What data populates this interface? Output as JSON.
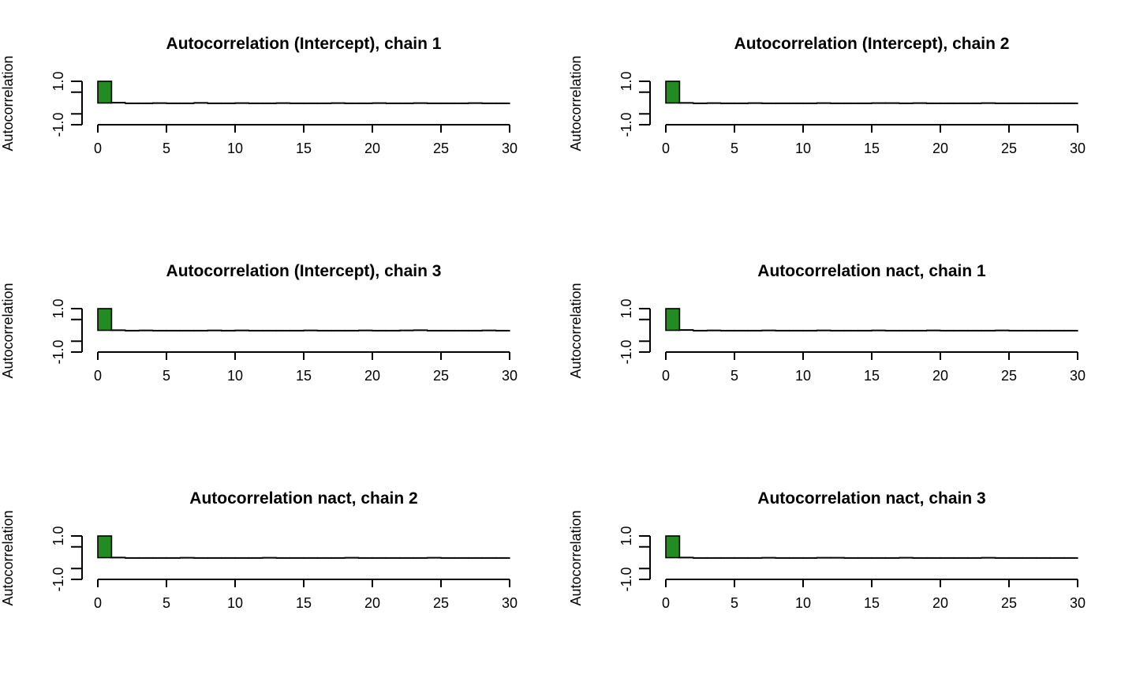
{
  "bar_fill": "#228B22",
  "stroke": "#000000",
  "chart_data": [
    {
      "type": "bar",
      "title": "Autocorrelation (Intercept), chain 1",
      "xlabel": "",
      "ylabel": "Autocorrelation",
      "xlim": [
        0,
        30
      ],
      "ylim": [
        -1,
        1
      ],
      "xticks": [
        "0",
        "5",
        "10",
        "15",
        "20",
        "25",
        "30"
      ],
      "yticks": [
        "-1.0",
        "1.0"
      ],
      "lags": [
        0,
        1,
        2,
        3,
        4,
        5,
        6,
        7,
        8,
        9,
        10,
        11,
        12,
        13,
        14,
        15,
        16,
        17,
        18,
        19,
        20,
        21,
        22,
        23,
        24,
        25,
        26,
        27,
        28,
        29,
        30
      ],
      "values": [
        1.0,
        0.03,
        -0.01,
        0.0,
        0.01,
        -0.01,
        0.0,
        0.02,
        -0.01,
        0.0,
        0.01,
        0.0,
        -0.01,
        0.01,
        0.0,
        0.0,
        -0.01,
        0.01,
        0.0,
        0.0,
        0.01,
        -0.01,
        0.0,
        0.01,
        0.0,
        -0.01,
        0.0,
        0.01,
        0.0,
        -0.01,
        0.0
      ]
    },
    {
      "type": "bar",
      "title": "Autocorrelation (Intercept), chain 2",
      "xlabel": "",
      "ylabel": "Autocorrelation",
      "xlim": [
        0,
        30
      ],
      "ylim": [
        -1,
        1
      ],
      "xticks": [
        "0",
        "5",
        "10",
        "15",
        "20",
        "25",
        "30"
      ],
      "yticks": [
        "-1.0",
        "1.0"
      ],
      "lags": [
        0,
        1,
        2,
        3,
        4,
        5,
        6,
        7,
        8,
        9,
        10,
        11,
        12,
        13,
        14,
        15,
        16,
        17,
        18,
        19,
        20,
        21,
        22,
        23,
        24,
        25,
        26,
        27,
        28,
        29,
        30
      ],
      "values": [
        1.0,
        0.02,
        0.0,
        0.01,
        -0.01,
        0.0,
        0.01,
        0.0,
        -0.01,
        0.0,
        0.0,
        0.01,
        -0.01,
        -0.02,
        0.0,
        0.01,
        0.01,
        0.0,
        0.01,
        0.0,
        -0.01,
        0.0,
        0.0,
        0.01,
        -0.01,
        0.0,
        0.0,
        -0.01,
        0.0,
        0.0,
        0.0
      ]
    },
    {
      "type": "bar",
      "title": "Autocorrelation (Intercept), chain 3",
      "xlabel": "",
      "ylabel": "Autocorrelation",
      "xlim": [
        0,
        30
      ],
      "ylim": [
        -1,
        1
      ],
      "xticks": [
        "0",
        "5",
        "10",
        "15",
        "20",
        "25",
        "30"
      ],
      "yticks": [
        "-1.0",
        "1.0"
      ],
      "lags": [
        0,
        1,
        2,
        3,
        4,
        5,
        6,
        7,
        8,
        9,
        10,
        11,
        12,
        13,
        14,
        15,
        16,
        17,
        18,
        19,
        20,
        21,
        22,
        23,
        24,
        25,
        26,
        27,
        28,
        29,
        30
      ],
      "values": [
        1.0,
        0.02,
        0.0,
        0.01,
        0.0,
        -0.01,
        0.0,
        -0.01,
        0.01,
        0.0,
        0.01,
        0.0,
        0.0,
        -0.01,
        0.0,
        0.01,
        0.0,
        0.0,
        -0.01,
        0.01,
        0.0,
        0.0,
        0.01,
        0.02,
        0.0,
        -0.01,
        0.0,
        0.0,
        0.01,
        0.0,
        -0.01
      ]
    },
    {
      "type": "bar",
      "title": "Autocorrelation nact, chain 1",
      "xlabel": "",
      "ylabel": "Autocorrelation",
      "xlim": [
        0,
        30
      ],
      "ylim": [
        -1,
        1
      ],
      "xticks": [
        "0",
        "5",
        "10",
        "15",
        "20",
        "25",
        "30"
      ],
      "yticks": [
        "-1.0",
        "1.0"
      ],
      "lags": [
        0,
        1,
        2,
        3,
        4,
        5,
        6,
        7,
        8,
        9,
        10,
        11,
        12,
        13,
        14,
        15,
        16,
        17,
        18,
        19,
        20,
        21,
        22,
        23,
        24,
        25,
        26,
        27,
        28,
        29,
        30
      ],
      "values": [
        1.0,
        0.03,
        0.0,
        0.01,
        -0.01,
        0.0,
        0.0,
        0.01,
        -0.01,
        0.0,
        0.0,
        0.01,
        0.0,
        0.0,
        -0.01,
        0.01,
        0.0,
        0.0,
        0.0,
        0.01,
        0.0,
        0.0,
        -0.01,
        0.0,
        0.01,
        0.0,
        -0.01,
        0.0,
        -0.02,
        0.0,
        0.0
      ]
    },
    {
      "type": "bar",
      "title": "Autocorrelation nact, chain 2",
      "xlabel": "",
      "ylabel": "Autocorrelation",
      "xlim": [
        0,
        30
      ],
      "ylim": [
        -1,
        1
      ],
      "xticks": [
        "0",
        "5",
        "10",
        "15",
        "20",
        "25",
        "30"
      ],
      "yticks": [
        "-1.0",
        "1.0"
      ],
      "lags": [
        0,
        1,
        2,
        3,
        4,
        5,
        6,
        7,
        8,
        9,
        10,
        11,
        12,
        13,
        14,
        15,
        16,
        17,
        18,
        19,
        20,
        21,
        22,
        23,
        24,
        25,
        26,
        27,
        28,
        29,
        30
      ],
      "values": [
        1.0,
        0.02,
        0.0,
        -0.01,
        0.0,
        0.0,
        0.01,
        0.0,
        0.0,
        -0.01,
        -0.01,
        0.0,
        0.01,
        0.0,
        0.0,
        0.0,
        -0.01,
        0.0,
        0.01,
        0.0,
        0.0,
        -0.01,
        0.0,
        0.0,
        0.01,
        0.0,
        0.0,
        -0.01,
        0.0,
        0.0,
        0.0
      ]
    },
    {
      "type": "bar",
      "title": "Autocorrelation nact, chain 3",
      "xlabel": "",
      "ylabel": "Autocorrelation",
      "xlim": [
        0,
        30
      ],
      "ylim": [
        -1,
        1
      ],
      "xticks": [
        "0",
        "5",
        "10",
        "15",
        "20",
        "25",
        "30"
      ],
      "yticks": [
        "-1.0",
        "1.0"
      ],
      "lags": [
        0,
        1,
        2,
        3,
        4,
        5,
        6,
        7,
        8,
        9,
        10,
        11,
        12,
        13,
        14,
        15,
        16,
        17,
        18,
        19,
        20,
        21,
        22,
        23,
        24,
        25,
        26,
        27,
        28,
        29,
        30
      ],
      "values": [
        1.0,
        0.02,
        0.0,
        0.0,
        -0.01,
        -0.02,
        0.0,
        0.01,
        0.0,
        0.0,
        0.0,
        0.01,
        0.01,
        0.0,
        -0.01,
        0.0,
        0.0,
        0.01,
        0.0,
        -0.01,
        -0.01,
        0.0,
        0.0,
        0.01,
        0.0,
        0.0,
        -0.01,
        0.0,
        0.0,
        0.0,
        0.0
      ]
    }
  ]
}
